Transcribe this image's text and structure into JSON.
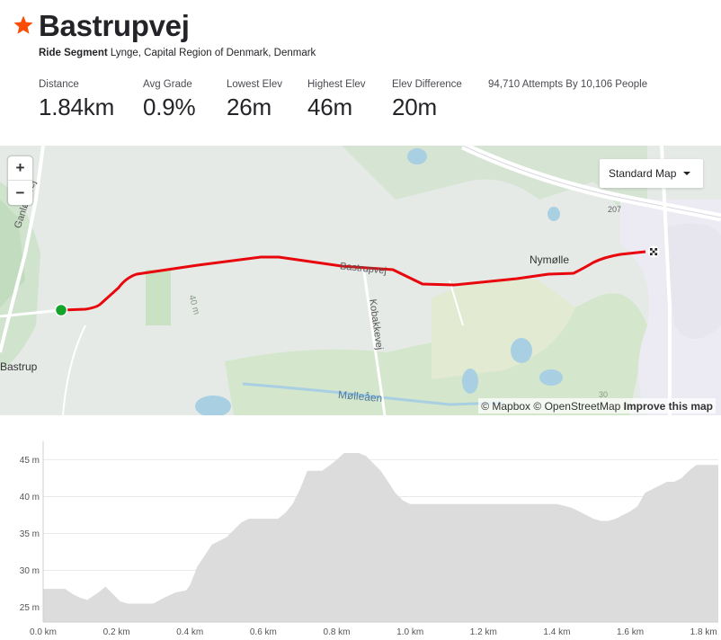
{
  "segment": {
    "title": "Bastrupvej",
    "type": "Ride Segment",
    "location": "Lynge, Capital Region of Denmark, Denmark"
  },
  "stats": [
    {
      "label": "Distance",
      "value": "1.84km"
    },
    {
      "label": "Avg Grade",
      "value": "0.9%"
    },
    {
      "label": "Lowest Elev",
      "value": "26m"
    },
    {
      "label": "Highest Elev",
      "value": "46m"
    },
    {
      "label": "Elev Difference",
      "value": "20m"
    }
  ],
  "attempts": "94,710 Attempts By 10,106 People",
  "map": {
    "zoom_in": "+",
    "zoom_out": "−",
    "map_type": "Standard Map",
    "labels": {
      "road_ganlosevej": "Ganløsevej",
      "road_bastrupvej": "Bastrupvej",
      "road_kobakkevej": "Kobakkevej",
      "river": "Mølleåen",
      "place_nymolle": "Nymølle",
      "place_bastrup": "Bastrup",
      "contour_40": "40 m",
      "contour_30": "30",
      "route_207": "207"
    },
    "attribution": {
      "mapbox": "© Mapbox",
      "osm": "© OpenStreetMap",
      "improve": "Improve this map"
    },
    "route_color": "#e8070d",
    "start_color": "#15a42b"
  },
  "chart_data": {
    "type": "area",
    "xlabel": "",
    "ylabel": "",
    "x_unit": "km",
    "y_unit": "m",
    "xlim": [
      0.0,
      1.84
    ],
    "ylim": [
      23,
      47
    ],
    "x_ticks": [
      "0.0 km",
      "0.2 km",
      "0.4 km",
      "0.6 km",
      "0.8 km",
      "1.0 km",
      "1.2 km",
      "1.4 km",
      "1.6 km",
      "1.8 km"
    ],
    "y_ticks": [
      "25 m",
      "30 m",
      "35 m",
      "40 m",
      "45 m"
    ],
    "fill_color": "#dcdcdc",
    "series": [
      {
        "x": [
          0.0,
          0.06,
          0.08,
          0.1,
          0.12,
          0.15,
          0.17,
          0.19,
          0.21,
          0.23,
          0.3,
          0.33,
          0.36,
          0.39,
          0.4,
          0.42,
          0.44,
          0.46,
          0.48,
          0.5,
          0.52,
          0.54,
          0.56,
          0.6,
          0.64,
          0.66,
          0.68,
          0.7,
          0.72,
          0.74,
          0.76,
          0.78,
          0.8,
          0.82,
          0.84,
          0.86,
          0.88,
          0.9,
          0.92,
          0.94,
          0.96,
          0.98,
          1.0,
          1.1,
          1.2,
          1.3,
          1.4,
          1.44,
          1.46,
          1.48,
          1.5,
          1.52,
          1.54,
          1.56,
          1.58,
          1.6,
          1.62,
          1.64,
          1.66,
          1.68,
          1.7,
          1.72,
          1.74,
          1.76,
          1.78,
          1.8,
          1.84
        ],
        "y": [
          27.5,
          27.5,
          26.8,
          26.3,
          26.0,
          27.0,
          27.8,
          26.8,
          25.8,
          25.5,
          25.5,
          26.3,
          27.0,
          27.3,
          28.0,
          30.5,
          32.0,
          33.5,
          34.0,
          34.5,
          35.5,
          36.5,
          37.0,
          37.0,
          37.0,
          37.8,
          39.0,
          41.0,
          43.5,
          43.5,
          43.5,
          44.2,
          45.0,
          45.9,
          45.9,
          45.9,
          45.5,
          44.5,
          43.5,
          42.0,
          40.5,
          39.5,
          39.0,
          39.0,
          39.0,
          39.0,
          39.0,
          38.5,
          38.0,
          37.5,
          37.0,
          36.7,
          36.7,
          37.0,
          37.5,
          38.0,
          38.7,
          40.5,
          41.0,
          41.5,
          42.0,
          42.0,
          42.5,
          43.5,
          44.3,
          44.3,
          44.3
        ]
      }
    ]
  }
}
